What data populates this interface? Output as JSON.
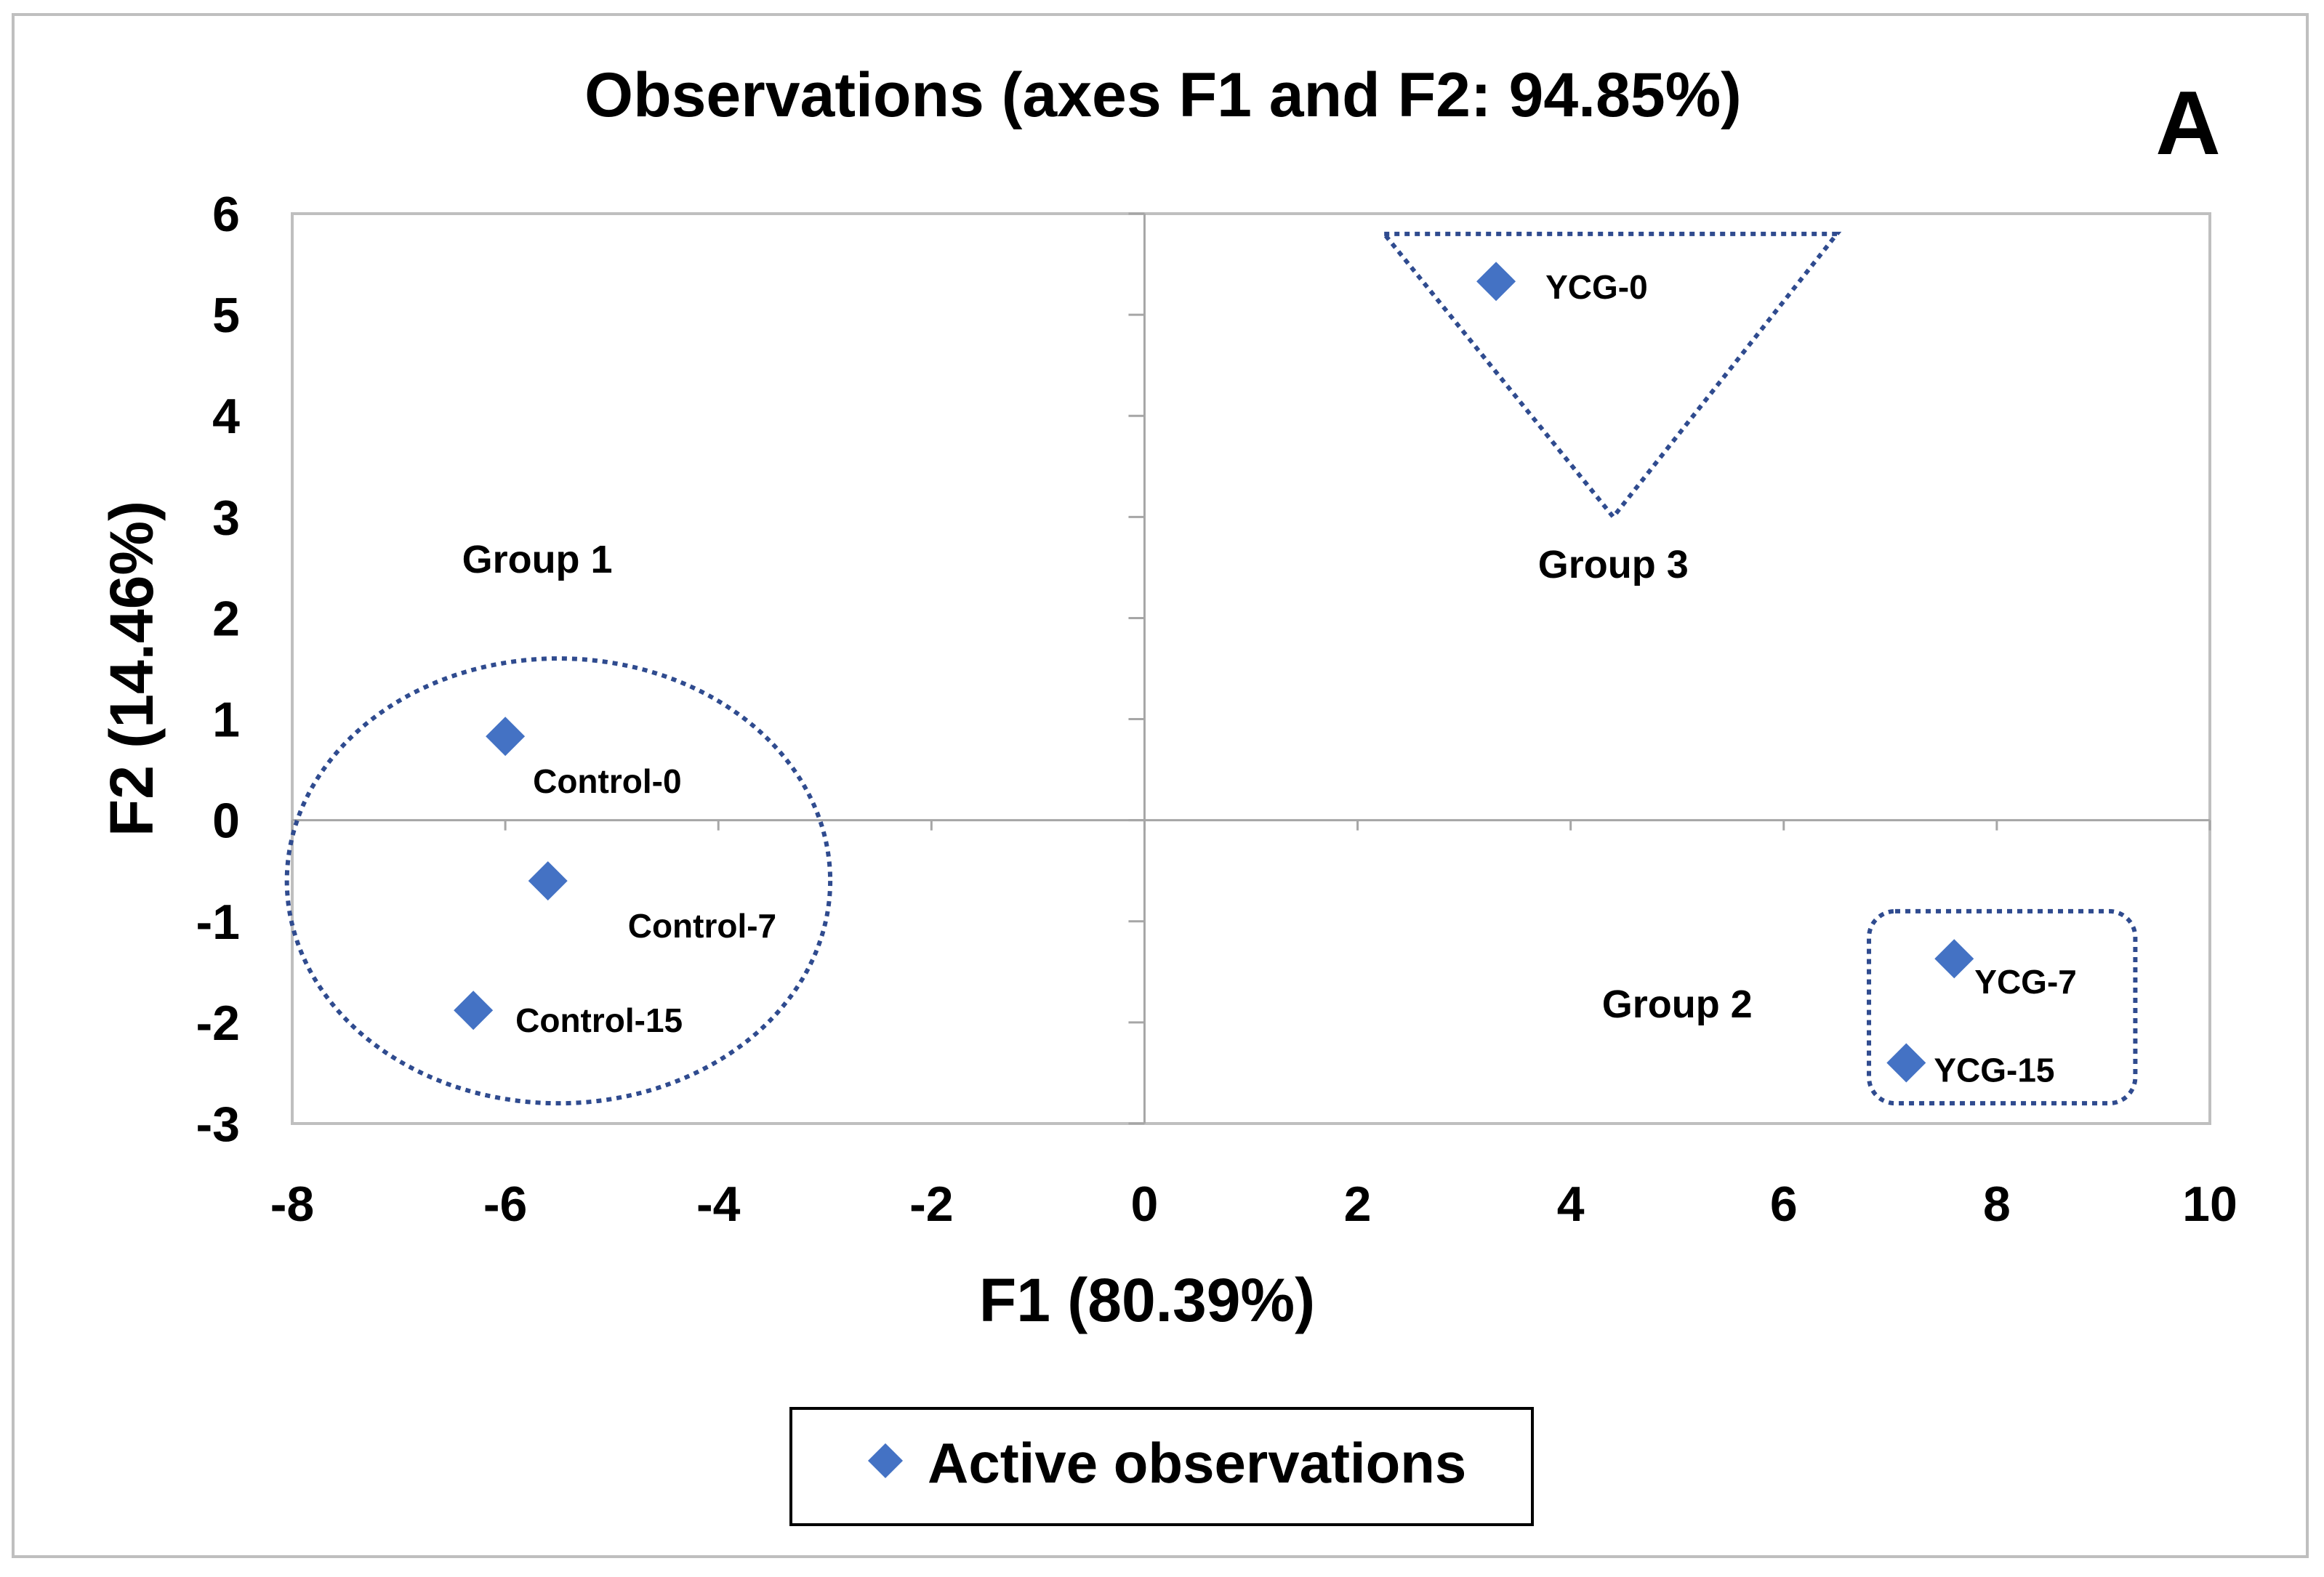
{
  "panel_letter": "A",
  "chart_data": {
    "type": "scatter",
    "title": "Observations (axes F1 and F2: 94.85%)",
    "xlabel": "F1 (80.39%)",
    "ylabel": "F2 (14.46%)",
    "xlim": [
      -8,
      10
    ],
    "ylim": [
      -3,
      6
    ],
    "xticks": [
      -8,
      -6,
      -4,
      -2,
      0,
      2,
      4,
      6,
      8,
      10
    ],
    "yticks": [
      -3,
      -2,
      -1,
      0,
      1,
      2,
      3,
      4,
      5,
      6
    ],
    "grid": false,
    "legend": {
      "position": "bottom-center",
      "entries": [
        "Active observations"
      ]
    },
    "series": [
      {
        "name": "Active observations",
        "color": "#4472c4",
        "points": [
          {
            "label": "Control-0",
            "x": -6.0,
            "y": 0.83
          },
          {
            "label": "Control-7",
            "x": -5.6,
            "y": -0.6
          },
          {
            "label": "Control-15",
            "x": -6.3,
            "y": -1.88
          },
          {
            "label": "YCG-0",
            "x": 3.3,
            "y": 5.33
          },
          {
            "label": "YCG-7",
            "x": 7.6,
            "y": -1.37
          },
          {
            "label": "YCG-15",
            "x": 7.15,
            "y": -2.4
          }
        ]
      }
    ],
    "groups": [
      {
        "label": "Group 1",
        "label_x": -5.7,
        "label_y": 2.45,
        "shape": "ellipse",
        "cx": -5.5,
        "cy": -0.6,
        "rx": 2.55,
        "ry": 2.2
      },
      {
        "label": "Group 2",
        "label_x": 5.0,
        "label_y": -1.95,
        "shape": "rounded-rect",
        "x0": 6.8,
        "y0": -2.8,
        "x1": 9.3,
        "y1": -0.9
      },
      {
        "label": "Group 3",
        "label_x": 4.4,
        "label_y": 2.4,
        "shape": "triangle",
        "vertices": [
          [
            2.25,
            5.8
          ],
          [
            6.5,
            5.8
          ],
          [
            4.4,
            3.0
          ]
        ]
      }
    ],
    "outline_color": "#2f4b8f"
  }
}
